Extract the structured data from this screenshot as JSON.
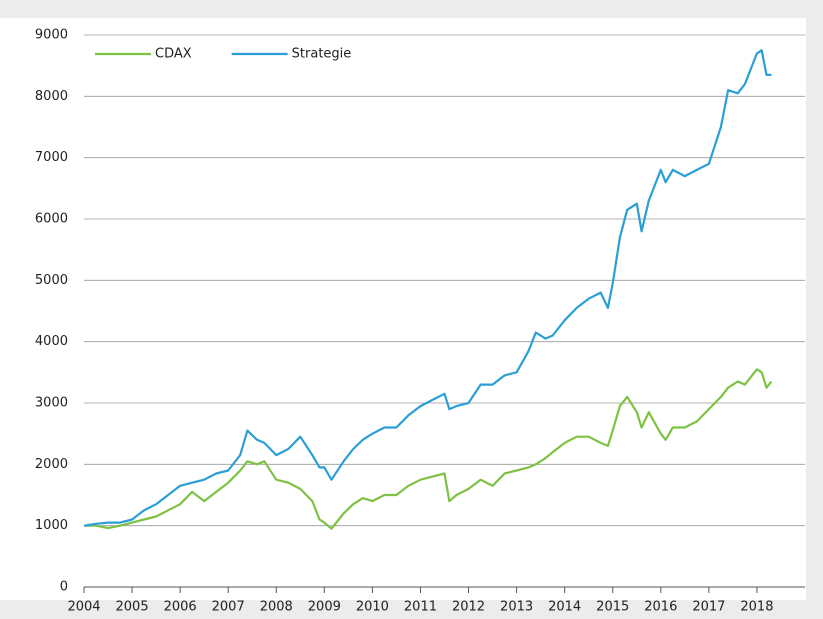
{
  "chart_data": {
    "type": "line",
    "x": [
      2004.0,
      2004.25,
      2004.5,
      2004.75,
      2005.0,
      2005.25,
      2005.5,
      2005.75,
      2006.0,
      2006.25,
      2006.5,
      2006.75,
      2007.0,
      2007.25,
      2007.4,
      2007.6,
      2007.75,
      2008.0,
      2008.25,
      2008.5,
      2008.75,
      2008.9,
      2009.0,
      2009.15,
      2009.4,
      2009.6,
      2009.8,
      2010.0,
      2010.25,
      2010.5,
      2010.75,
      2011.0,
      2011.25,
      2011.5,
      2011.6,
      2011.75,
      2012.0,
      2012.25,
      2012.5,
      2012.75,
      2013.0,
      2013.25,
      2013.4,
      2013.6,
      2013.75,
      2014.0,
      2014.25,
      2014.5,
      2014.75,
      2014.9,
      2015.0,
      2015.15,
      2015.3,
      2015.5,
      2015.6,
      2015.75,
      2016.0,
      2016.1,
      2016.25,
      2016.5,
      2016.75,
      2017.0,
      2017.25,
      2017.4,
      2017.6,
      2017.75,
      2018.0,
      2018.1,
      2018.2,
      2018.3
    ],
    "series": [
      {
        "name": "CDAX",
        "color": "#7dc242",
        "values": [
          1000,
          1000,
          960,
          1000,
          1050,
          1100,
          1150,
          1250,
          1350,
          1550,
          1400,
          1550,
          1700,
          1900,
          2050,
          2000,
          2050,
          1750,
          1700,
          1600,
          1400,
          1100,
          1050,
          950,
          1200,
          1350,
          1450,
          1400,
          1500,
          1500,
          1650,
          1750,
          1800,
          1850,
          1400,
          1500,
          1600,
          1750,
          1650,
          1850,
          1900,
          1950,
          2000,
          2100,
          2200,
          2350,
          2450,
          2450,
          2350,
          2300,
          2550,
          2950,
          3100,
          2850,
          2600,
          2850,
          2500,
          2400,
          2600,
          2600,
          2700,
          2900,
          3100,
          3250,
          3350,
          3300,
          3550,
          3500,
          3250,
          3350
        ]
      },
      {
        "name": "Strategie",
        "color": "#2a9fd6",
        "values": [
          1000,
          1030,
          1050,
          1050,
          1100,
          1250,
          1350,
          1500,
          1650,
          1700,
          1750,
          1850,
          1900,
          2150,
          2550,
          2400,
          2350,
          2150,
          2250,
          2450,
          2150,
          1950,
          1950,
          1750,
          2050,
          2250,
          2400,
          2500,
          2600,
          2600,
          2800,
          2950,
          3050,
          3150,
          2900,
          2950,
          3000,
          3300,
          3300,
          3450,
          3500,
          3850,
          4150,
          4050,
          4100,
          4350,
          4550,
          4700,
          4800,
          4550,
          4950,
          5700,
          6150,
          6250,
          5800,
          6300,
          6800,
          6600,
          6800,
          6700,
          6800,
          6900,
          7500,
          8100,
          8050,
          8200,
          8700,
          8750,
          8350,
          8350
        ]
      }
    ],
    "xlim": [
      2004,
      2019
    ],
    "xticks": [
      2004,
      2005,
      2006,
      2007,
      2008,
      2009,
      2010,
      2011,
      2012,
      2013,
      2014,
      2015,
      2016,
      2017,
      2018
    ],
    "ylim": [
      0,
      9000
    ],
    "yticks": [
      0,
      1000,
      2000,
      3000,
      4000,
      5000,
      6000,
      7000,
      8000,
      9000
    ],
    "grid": true,
    "legend": "upper left"
  }
}
